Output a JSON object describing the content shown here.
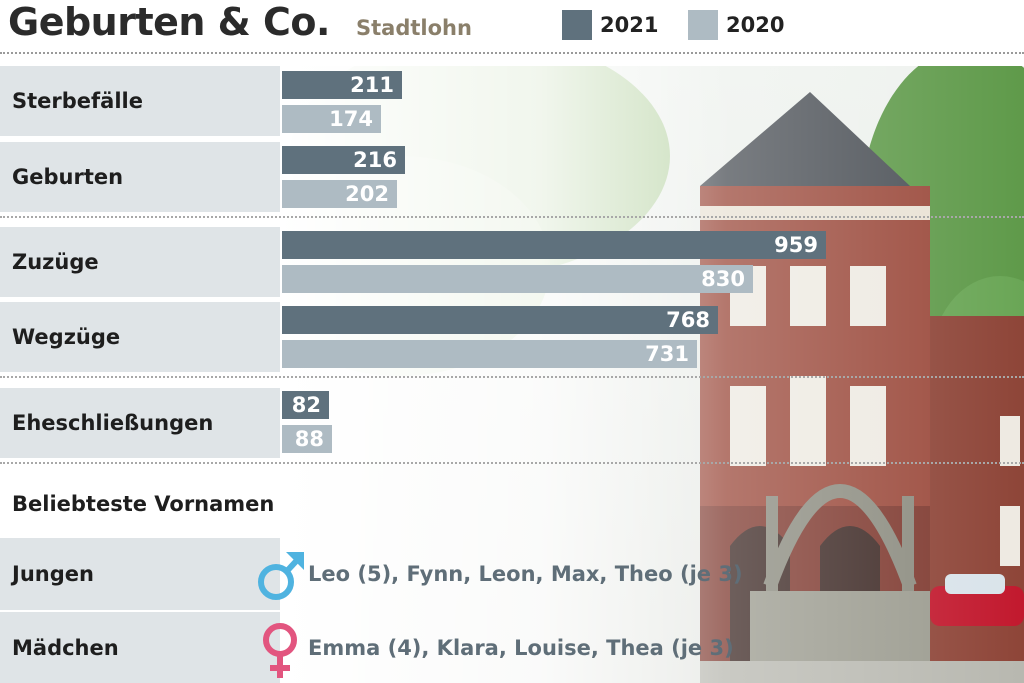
{
  "header": {
    "title": "Geburten & Co.",
    "subtitle": "Stadtlohn",
    "legend": [
      {
        "label": "2021",
        "color": "#5f717d"
      },
      {
        "label": "2020",
        "color": "#aebbc3"
      }
    ]
  },
  "chart_data": {
    "type": "bar",
    "orientation": "horizontal",
    "title": "Geburten & Co.",
    "subtitle": "Stadtlohn",
    "categories": [
      "Sterbefälle",
      "Geburten",
      "Zuzüge",
      "Wegzüge",
      "Eheschließungen"
    ],
    "series": [
      {
        "name": "2021",
        "color": "#5f717d",
        "values": [
          211,
          216,
          959,
          768,
          82
        ]
      },
      {
        "name": "2020",
        "color": "#aebbc3",
        "values": [
          174,
          202,
          830,
          731,
          88
        ]
      }
    ],
    "legend": "top-right",
    "grid": false
  },
  "names": {
    "heading": "Beliebteste Vornamen",
    "boys": {
      "label": "Jungen",
      "icon": "male-symbol-icon",
      "color": "#4fb3e0",
      "text": "Leo (5), Fynn, Leon, Max, Theo (je 3)"
    },
    "girls": {
      "label": "Mädchen",
      "icon": "female-symbol-icon",
      "color": "#e2557f",
      "text": "Emma (4), Klara, Louise, Thea (je 3)"
    }
  }
}
